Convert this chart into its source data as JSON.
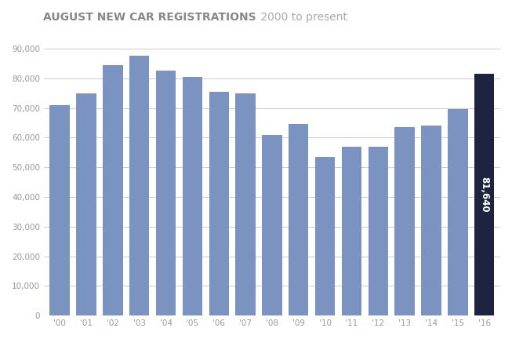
{
  "title_bold": "AUGUST NEW CAR REGISTRATIONS",
  "title_light": " 2000 to present",
  "years": [
    "'00",
    "'01",
    "'02",
    "'03",
    "'04",
    "'05",
    "'06",
    "'07",
    "'08",
    "'09",
    "'10",
    "'11",
    "'12",
    "'13",
    "'14",
    "'15",
    "'16"
  ],
  "values": [
    71000,
    75000,
    84500,
    87500,
    82500,
    80500,
    75500,
    75000,
    61000,
    64500,
    53500,
    57000,
    57000,
    63500,
    64000,
    69500,
    81640
  ],
  "bar_color": "#7b93c0",
  "last_bar_color": "#1e2340",
  "last_value_label": "81,640",
  "ylim": [
    0,
    95000
  ],
  "yticks": [
    0,
    10000,
    20000,
    30000,
    40000,
    50000,
    60000,
    70000,
    80000,
    90000
  ],
  "ytick_labels": [
    "0",
    "10,000",
    "20,000",
    "30,000",
    "40,000",
    "50,000",
    "60,000",
    "70,000",
    "80,000",
    "90,000"
  ],
  "background_color": "#ffffff",
  "grid_color": "#cccccc",
  "tick_color": "#999999",
  "title_bold_color": "#888888",
  "title_light_color": "#aaaaaa"
}
